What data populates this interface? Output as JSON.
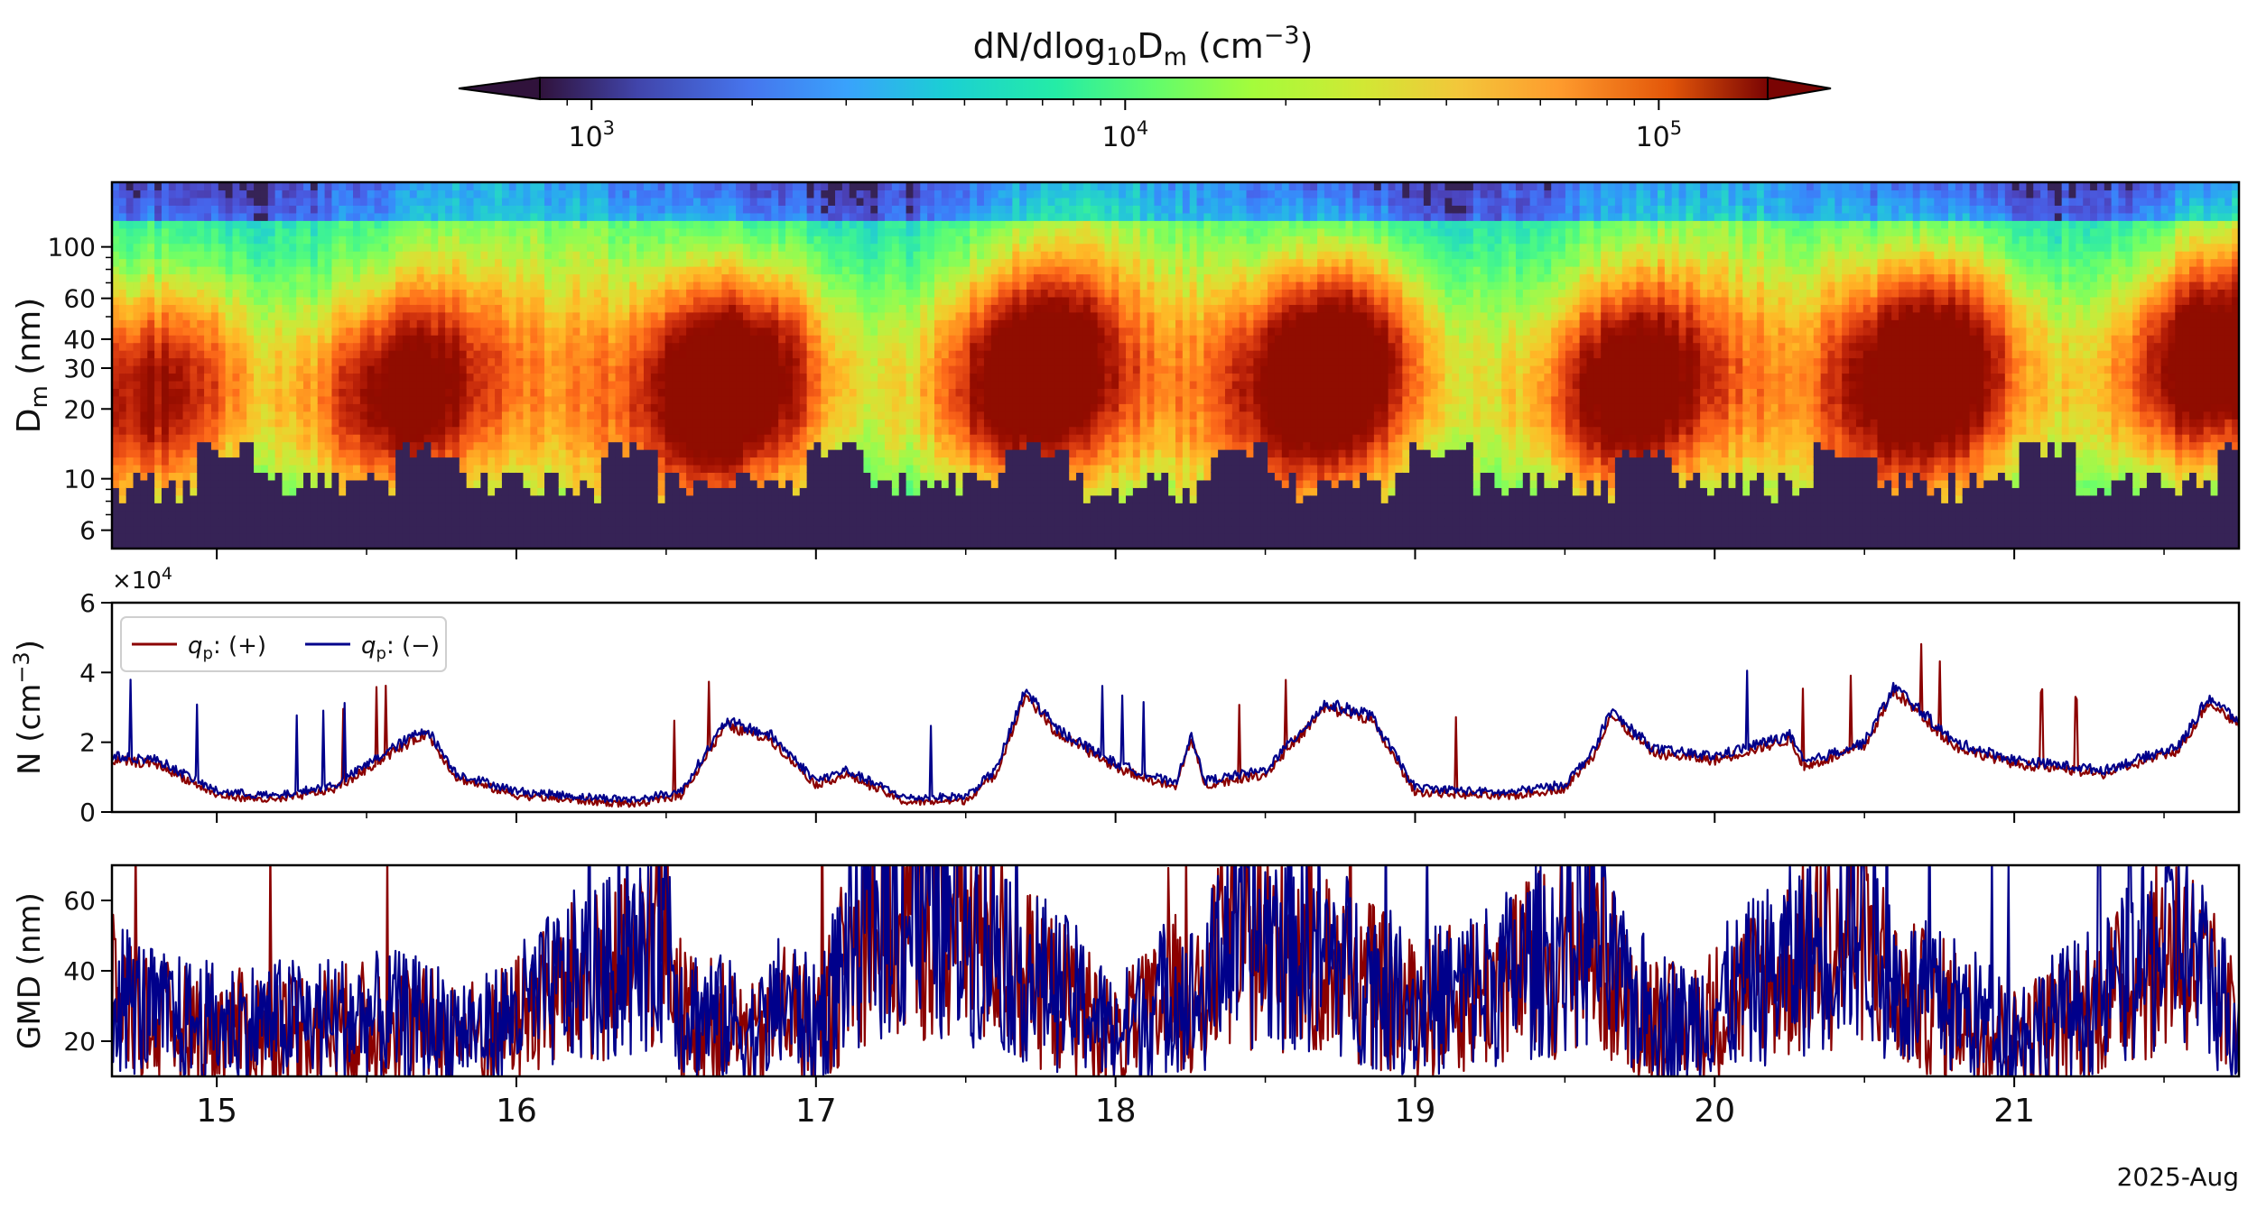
{
  "colorbar": {
    "title": {
      "main": "dN/dlog",
      "sub": "10",
      "mid": "D",
      "sub2": "m",
      "unit": " (cm",
      "sup": "−3",
      "close": ")"
    },
    "ticks": [
      {
        "base": "10",
        "exp": "3",
        "value": 1000
      },
      {
        "base": "10",
        "exp": "4",
        "value": 10000
      },
      {
        "base": "10",
        "exp": "5",
        "value": 100000
      }
    ],
    "range": [
      800,
      160000
    ],
    "extend": "both",
    "colormap": "turbo"
  },
  "chart_data": [
    {
      "type": "heatmap",
      "name": "size-distribution",
      "ylabel": {
        "main": "D",
        "sub": "m",
        "rest": " (nm)"
      },
      "yscale": "log",
      "ylim": [
        5,
        190
      ],
      "yticks": [
        "6",
        "10",
        "20",
        "30",
        "40",
        "60",
        "100"
      ],
      "yticks_values": [
        6,
        10,
        20,
        30,
        40,
        60,
        100
      ],
      "xlim": [
        14.65,
        21.75
      ],
      "events": [
        {
          "t": 14.82,
          "d": 24,
          "amp": 0.55
        },
        {
          "t": 15.62,
          "d": 22,
          "amp": 0.78
        },
        {
          "t": 16.72,
          "d": 26,
          "amp": 0.9
        },
        {
          "t": 17.72,
          "d": 28,
          "amp": 0.95
        },
        {
          "t": 18.72,
          "d": 30,
          "amp": 0.98
        },
        {
          "t": 19.72,
          "d": 24,
          "amp": 0.85
        },
        {
          "t": 20.72,
          "d": 30,
          "amp": 0.9
        },
        {
          "t": 21.65,
          "d": 35,
          "amp": 0.92
        }
      ]
    },
    {
      "type": "line",
      "name": "number-concentration",
      "ylabel": {
        "main": "N (cm",
        "sup": "−3",
        "close": ")"
      },
      "multiplier": {
        "main": "×10",
        "sup": "4"
      },
      "ylim": [
        0,
        6
      ],
      "yticks": [
        "0",
        "2",
        "4",
        "6"
      ],
      "yticks_values": [
        0,
        2,
        4,
        6
      ],
      "series": [
        {
          "name": "qp_plus",
          "label": {
            "q": "q",
            "sub": "p",
            "rest": ": (+)"
          },
          "color": "#8b0000"
        },
        {
          "name": "qp_minus",
          "label": {
            "q": "q",
            "sub": "p",
            "rest": ": (−)"
          },
          "color": "#00008b"
        }
      ],
      "x": [
        14.65,
        14.8,
        15.0,
        15.2,
        15.4,
        15.6,
        15.7,
        15.8,
        16.0,
        16.2,
        16.4,
        16.55,
        16.7,
        16.85,
        17.0,
        17.1,
        17.3,
        17.5,
        17.6,
        17.7,
        17.8,
        18.0,
        18.2,
        18.25,
        18.3,
        18.5,
        18.7,
        18.85,
        19.0,
        19.3,
        19.5,
        19.6,
        19.65,
        19.8,
        20.0,
        20.25,
        20.3,
        20.5,
        20.6,
        20.8,
        21.0,
        21.3,
        21.55,
        21.65,
        21.75
      ],
      "values": [
        1.6,
        1.5,
        0.6,
        0.45,
        0.8,
        1.9,
        2.4,
        1.1,
        0.6,
        0.45,
        0.35,
        0.6,
        2.6,
        2.2,
        0.9,
        1.2,
        0.4,
        0.45,
        1.2,
        3.5,
        2.4,
        1.4,
        0.8,
        2.2,
        0.9,
        1.2,
        3.1,
        2.8,
        0.7,
        0.55,
        0.8,
        1.8,
        2.9,
        1.8,
        1.6,
        2.2,
        1.4,
        2.0,
        3.6,
        2.0,
        1.5,
        1.2,
        1.9,
        3.3,
        2.6
      ]
    },
    {
      "type": "line",
      "name": "geometric-mean-diameter",
      "ylabel": "GMD (nm)",
      "ylim": [
        10,
        70
      ],
      "yticks": [
        "20",
        "40",
        "60"
      ],
      "yticks_values": [
        20,
        40,
        60
      ],
      "xaxis": {
        "ticks": [
          "15",
          "16",
          "17",
          "18",
          "19",
          "20",
          "21"
        ],
        "ticks_values": [
          15,
          16,
          17,
          18,
          19,
          20,
          21
        ],
        "offset_label": "2025-Aug"
      },
      "x": [
        14.65,
        14.8,
        15.0,
        15.3,
        15.6,
        15.9,
        16.0,
        16.2,
        16.4,
        16.5,
        16.55,
        16.7,
        16.8,
        16.9,
        17.0,
        17.1,
        17.2,
        17.4,
        17.6,
        17.7,
        17.9,
        18.0,
        18.2,
        18.3,
        18.35,
        18.6,
        18.8,
        19.0,
        19.3,
        19.5,
        19.6,
        19.7,
        19.9,
        20.0,
        20.3,
        20.5,
        20.6,
        20.8,
        21.0,
        21.3,
        21.55,
        21.75
      ],
      "values": [
        35,
        27,
        25,
        26,
        27,
        23,
        28,
        38,
        42,
        58,
        30,
        26,
        22,
        32,
        24,
        44,
        57,
        55,
        50,
        40,
        30,
        22,
        35,
        30,
        50,
        48,
        40,
        30,
        38,
        47,
        50,
        33,
        25,
        30,
        45,
        55,
        35,
        30,
        22,
        33,
        50,
        25
      ]
    }
  ]
}
